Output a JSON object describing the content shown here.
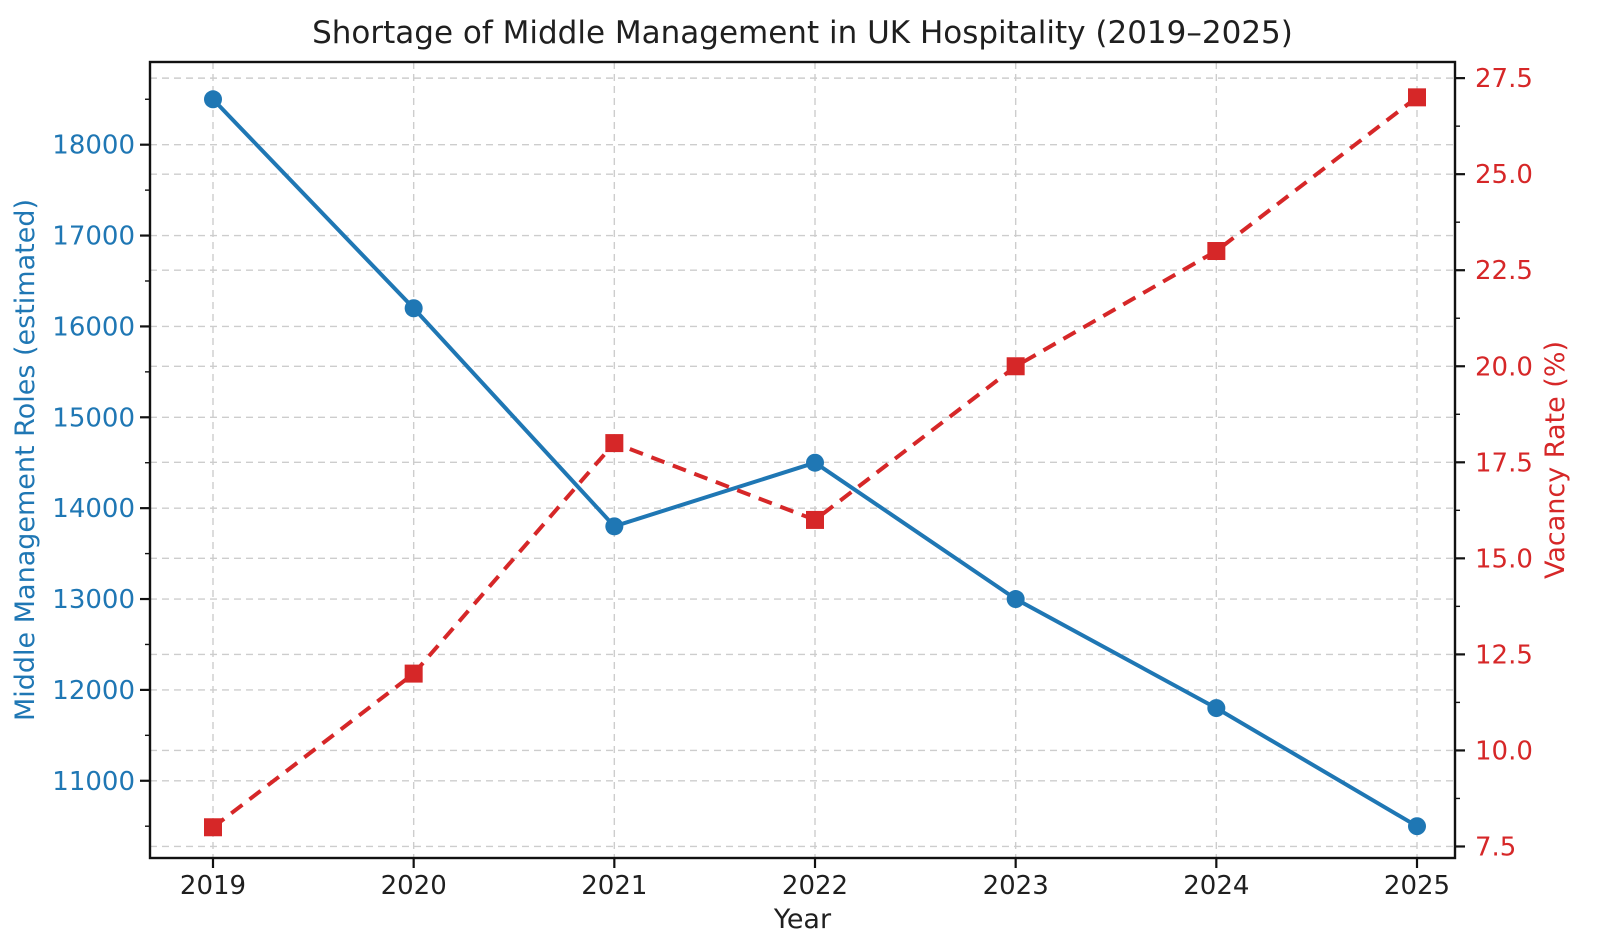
{
  "figure": {
    "background": "#ffffff",
    "spine_color": "#111111",
    "grid_color": "#cdcdcd",
    "text_color": "#1f1f1f"
  },
  "chart_data": {
    "type": "line",
    "title": "Shortage of Middle Management in UK Hospitality (2019–2025)",
    "xlabel": "Year",
    "categories": [
      2019,
      2020,
      2021,
      2022,
      2023,
      2024,
      2025
    ],
    "series": [
      {
        "name": "Middle Management Roles (estimated)",
        "axis": "left",
        "color": "#1f77b4",
        "line_style": "solid",
        "marker": "circle",
        "values": [
          18500,
          16200,
          13800,
          14500,
          13000,
          11800,
          10500
        ]
      },
      {
        "name": "Vacancy Rate (%)",
        "axis": "right",
        "color": "#d62728",
        "line_style": "dashed",
        "marker": "square",
        "values": [
          8.0,
          12.0,
          18.0,
          16.0,
          20.0,
          23.0,
          27.0
        ]
      }
    ],
    "left_axis": {
      "label": "Middle Management Roles (estimated)",
      "color": "#1f77b4",
      "ticks": [
        11000,
        12000,
        13000,
        14000,
        15000,
        16000,
        17000,
        18000
      ],
      "minor_step": 500,
      "ylim": [
        10150,
        18910
      ],
      "tick_decimals": 0
    },
    "right_axis": {
      "label": "Vacancy Rate (%)",
      "color": "#d62728",
      "ticks": [
        7.5,
        10.0,
        12.5,
        15.0,
        17.5,
        20.0,
        22.5,
        25.0,
        27.5
      ],
      "minor_step": 1.25,
      "ylim": [
        7.2,
        27.92
      ],
      "tick_decimals": 1
    },
    "grid": {
      "on": true,
      "style": "dashed",
      "legend_position": "none"
    }
  }
}
